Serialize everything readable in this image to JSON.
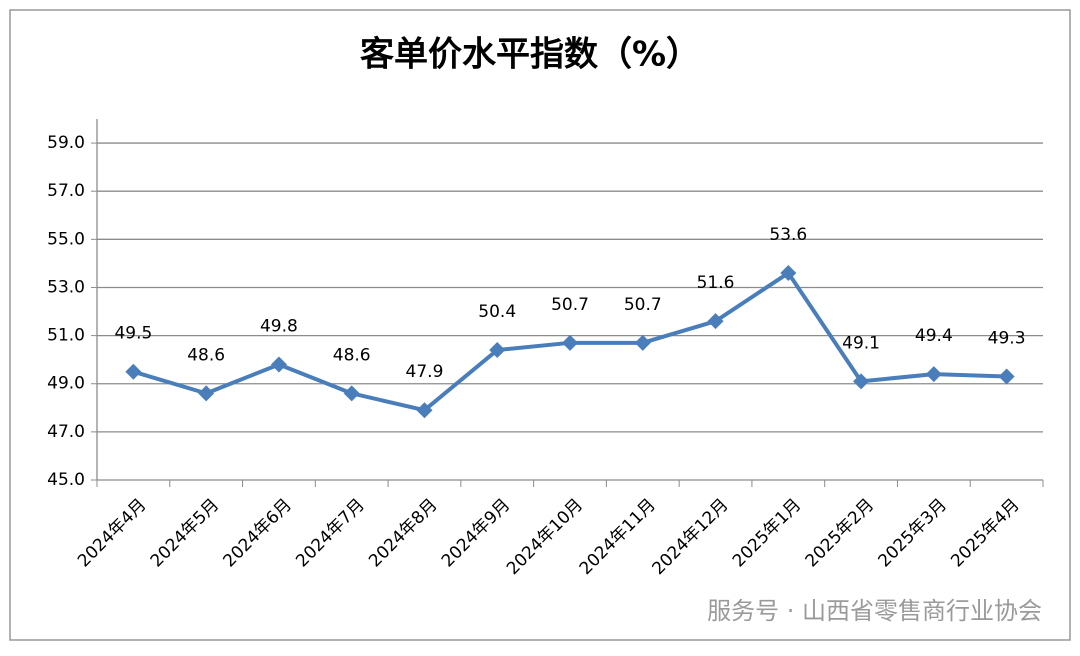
{
  "chart_data": {
    "type": "line",
    "title": "客单价水平指数（%）",
    "categories": [
      "2024年4月",
      "2024年5月",
      "2024年6月",
      "2024年7月",
      "2024年8月",
      "2024年9月",
      "2024年10月",
      "2024年11月",
      "2024年12月",
      "2025年1月",
      "2025年2月",
      "2025年3月",
      "2025年4月"
    ],
    "series": [
      {
        "color": "#4a7ebb",
        "values": [
          49.5,
          48.6,
          49.8,
          48.6,
          47.9,
          50.4,
          50.7,
          50.7,
          51.6,
          53.6,
          49.1,
          49.4,
          49.3
        ]
      }
    ],
    "ylim": [
      45,
      60
    ],
    "yticks": [
      {
        "value": 45,
        "label": "45.0"
      },
      {
        "value": 47,
        "label": "47.0"
      },
      {
        "value": 49,
        "label": "49.0"
      },
      {
        "value": 51,
        "label": "51.0"
      },
      {
        "value": 53,
        "label": "53.0"
      },
      {
        "value": 55,
        "label": "55.0"
      },
      {
        "value": 57,
        "label": "57.0"
      },
      {
        "value": 59,
        "label": "59.0"
      }
    ],
    "grid": true,
    "watermark": "服务号 · 山西省零售商行业协会"
  }
}
